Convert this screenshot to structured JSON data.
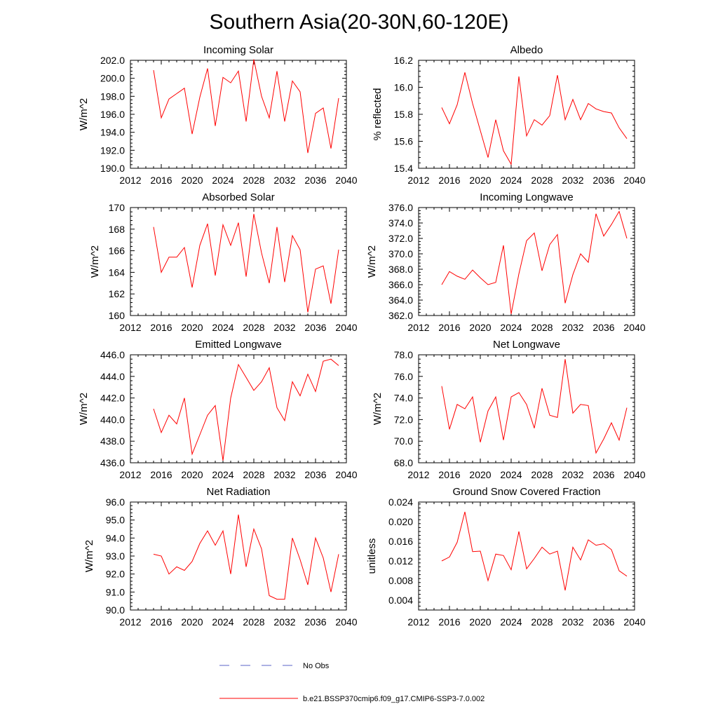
{
  "figure": {
    "title": "Southern Asia(20-30N,60-120E)"
  },
  "legend": {
    "obs_label": "No Obs",
    "model_label": "b.e21.BSSP370cmip6.f09_g17.CMIP6-SSP3-7.0.002",
    "obs_color": "#5b63c9",
    "model_color": "#ff0000"
  },
  "chart_data": [
    {
      "type": "line",
      "title": "Incoming Solar",
      "xlabel": "",
      "ylabel": "W/m^2",
      "xlim": [
        2012,
        2040
      ],
      "ylim": [
        190,
        202
      ],
      "xticks": [
        "2012",
        "2016",
        "2020",
        "2024",
        "2028",
        "2032",
        "2036",
        "2040"
      ],
      "yticks": [
        "190.0",
        "192.0",
        "194.0",
        "196.0",
        "198.0",
        "200.0",
        "202.0"
      ],
      "x": [
        2015,
        2016,
        2017,
        2018,
        2019,
        2020,
        2021,
        2022,
        2023,
        2024,
        2025,
        2026,
        2027,
        2028,
        2029,
        2030,
        2031,
        2032,
        2033,
        2034,
        2035,
        2036,
        2037,
        2038,
        2039
      ],
      "values": [
        200.9,
        195.6,
        197.7,
        198.3,
        198.9,
        193.8,
        197.9,
        201.1,
        194.7,
        200.1,
        199.5,
        200.8,
        195.2,
        202.1,
        198.0,
        195.6,
        200.8,
        195.2,
        199.7,
        198.5,
        191.7,
        196.1,
        196.7,
        192.2,
        197.8
      ],
      "color": "#ff0000"
    },
    {
      "type": "line",
      "title": "Albedo",
      "xlabel": "",
      "ylabel": "% reflected",
      "xlim": [
        2012,
        2040
      ],
      "ylim": [
        15.4,
        16.2
      ],
      "xticks": [
        "2012",
        "2016",
        "2020",
        "2024",
        "2028",
        "2032",
        "2036",
        "2040"
      ],
      "yticks": [
        "15.4",
        "15.6",
        "15.8",
        "16.0",
        "16.2"
      ],
      "x": [
        2015,
        2016,
        2017,
        2018,
        2019,
        2020,
        2021,
        2022,
        2023,
        2024,
        2025,
        2026,
        2027,
        2028,
        2029,
        2030,
        2031,
        2032,
        2033,
        2034,
        2035,
        2036,
        2037,
        2038,
        2039
      ],
      "values": [
        15.85,
        15.73,
        15.87,
        16.11,
        15.88,
        15.68,
        15.48,
        15.76,
        15.53,
        15.43,
        16.08,
        15.64,
        15.76,
        15.72,
        15.79,
        16.09,
        15.76,
        15.91,
        15.76,
        15.88,
        15.84,
        15.82,
        15.81,
        15.7,
        15.62
      ],
      "color": "#ff0000"
    },
    {
      "type": "line",
      "title": "Absorbed Solar",
      "xlabel": "",
      "ylabel": "W/m^2",
      "xlim": [
        2012,
        2040
      ],
      "ylim": [
        160,
        170
      ],
      "xticks": [
        "2012",
        "2016",
        "2020",
        "2024",
        "2028",
        "2032",
        "2036",
        "2040"
      ],
      "yticks": [
        "160",
        "162",
        "164",
        "166",
        "168",
        "170"
      ],
      "x": [
        2015,
        2016,
        2017,
        2018,
        2019,
        2020,
        2021,
        2022,
        2023,
        2024,
        2025,
        2026,
        2027,
        2028,
        2029,
        2030,
        2031,
        2032,
        2033,
        2034,
        2035,
        2036,
        2037,
        2038,
        2039
      ],
      "values": [
        168.2,
        164.0,
        165.4,
        165.4,
        166.3,
        162.6,
        166.5,
        168.5,
        163.7,
        168.4,
        166.5,
        168.6,
        163.6,
        169.4,
        165.8,
        163.0,
        168.2,
        163.1,
        167.4,
        166.1,
        160.3,
        164.3,
        164.6,
        161.1,
        166.1
      ],
      "color": "#ff0000"
    },
    {
      "type": "line",
      "title": "Incoming Longwave",
      "xlabel": "",
      "ylabel": "W/m^2",
      "xlim": [
        2012,
        2040
      ],
      "ylim": [
        362,
        376
      ],
      "xticks": [
        "2012",
        "2016",
        "2020",
        "2024",
        "2028",
        "2032",
        "2036",
        "2040"
      ],
      "yticks": [
        "362.0",
        "364.0",
        "366.0",
        "368.0",
        "370.0",
        "372.0",
        "374.0",
        "376.0"
      ],
      "x": [
        2015,
        2016,
        2017,
        2018,
        2019,
        2020,
        2021,
        2022,
        2023,
        2024,
        2025,
        2026,
        2027,
        2028,
        2029,
        2030,
        2031,
        2032,
        2033,
        2034,
        2035,
        2036,
        2037,
        2038,
        2039
      ],
      "values": [
        366.0,
        367.7,
        367.1,
        366.7,
        367.9,
        366.9,
        366.0,
        366.3,
        371.1,
        362.2,
        367.4,
        371.7,
        372.7,
        367.8,
        371.2,
        372.5,
        363.6,
        367.3,
        370.0,
        368.9,
        375.2,
        372.3,
        373.8,
        375.5,
        372.0
      ],
      "color": "#ff0000"
    },
    {
      "type": "line",
      "title": "Emitted Longwave",
      "xlabel": "",
      "ylabel": "W/m^2",
      "xlim": [
        2012,
        2040
      ],
      "ylim": [
        436,
        446
      ],
      "xticks": [
        "2012",
        "2016",
        "2020",
        "2024",
        "2028",
        "2032",
        "2036",
        "2040"
      ],
      "yticks": [
        "436.0",
        "438.0",
        "440.0",
        "442.0",
        "444.0",
        "446.0"
      ],
      "x": [
        2015,
        2016,
        2017,
        2018,
        2019,
        2020,
        2021,
        2022,
        2023,
        2024,
        2025,
        2026,
        2027,
        2028,
        2029,
        2030,
        2031,
        2032,
        2033,
        2034,
        2035,
        2036,
        2037,
        2038,
        2039
      ],
      "values": [
        441.0,
        438.8,
        440.4,
        439.6,
        442.0,
        436.8,
        438.6,
        440.4,
        441.3,
        436.2,
        442.0,
        445.1,
        443.9,
        442.7,
        443.5,
        444.8,
        441.1,
        439.9,
        443.5,
        442.2,
        444.2,
        442.6,
        445.4,
        445.6,
        445.0
      ],
      "color": "#ff0000"
    },
    {
      "type": "line",
      "title": "Net Longwave",
      "xlabel": "",
      "ylabel": "W/m^2",
      "xlim": [
        2012,
        2040
      ],
      "ylim": [
        68,
        78
      ],
      "xticks": [
        "2012",
        "2016",
        "2020",
        "2024",
        "2028",
        "2032",
        "2036",
        "2040"
      ],
      "yticks": [
        "68.0",
        "70.0",
        "72.0",
        "74.0",
        "76.0",
        "78.0"
      ],
      "x": [
        2015,
        2016,
        2017,
        2018,
        2019,
        2020,
        2021,
        2022,
        2023,
        2024,
        2025,
        2026,
        2027,
        2028,
        2029,
        2030,
        2031,
        2032,
        2033,
        2034,
        2035,
        2036,
        2037,
        2038,
        2039
      ],
      "values": [
        75.1,
        71.1,
        73.4,
        73.0,
        74.1,
        69.9,
        72.8,
        74.1,
        70.1,
        74.1,
        74.5,
        73.4,
        71.2,
        74.9,
        72.4,
        72.2,
        77.6,
        72.6,
        73.4,
        73.3,
        68.9,
        70.2,
        71.7,
        70.1,
        73.1
      ],
      "color": "#ff0000"
    },
    {
      "type": "line",
      "title": "Net Radiation",
      "xlabel": "",
      "ylabel": "W/m^2",
      "xlim": [
        2012,
        2040
      ],
      "ylim": [
        90,
        96
      ],
      "xticks": [
        "2012",
        "2016",
        "2020",
        "2024",
        "2028",
        "2032",
        "2036",
        "2040"
      ],
      "yticks": [
        "90.0",
        "91.0",
        "92.0",
        "93.0",
        "94.0",
        "95.0",
        "96.0"
      ],
      "x": [
        2015,
        2016,
        2017,
        2018,
        2019,
        2020,
        2021,
        2022,
        2023,
        2024,
        2025,
        2026,
        2027,
        2028,
        2029,
        2030,
        2031,
        2032,
        2033,
        2034,
        2035,
        2036,
        2037,
        2038,
        2039
      ],
      "values": [
        93.1,
        93.0,
        92.0,
        92.4,
        92.2,
        92.7,
        93.7,
        94.4,
        93.6,
        94.4,
        92.0,
        95.3,
        92.4,
        94.5,
        93.4,
        90.8,
        90.6,
        90.6,
        94.0,
        92.8,
        91.4,
        94.0,
        92.9,
        91.0,
        93.1
      ],
      "color": "#ff0000"
    },
    {
      "type": "line",
      "title": "Ground Snow Covered Fraction",
      "xlabel": "",
      "ylabel": "unitless",
      "xlim": [
        2012,
        2040
      ],
      "ylim": [
        0.002,
        0.024
      ],
      "xticks": [
        "2012",
        "2016",
        "2020",
        "2024",
        "2028",
        "2032",
        "2036",
        "2040"
      ],
      "yticks": [
        "0.004",
        "0.008",
        "0.012",
        "0.016",
        "0.020",
        "0.024"
      ],
      "x": [
        2015,
        2016,
        2017,
        2018,
        2019,
        2020,
        2021,
        2022,
        2023,
        2024,
        2025,
        2026,
        2027,
        2028,
        2029,
        2030,
        2031,
        2032,
        2033,
        2034,
        2035,
        2036,
        2037,
        2038,
        2039
      ],
      "values": [
        0.012,
        0.0128,
        0.0158,
        0.022,
        0.0139,
        0.014,
        0.008,
        0.0134,
        0.0131,
        0.0102,
        0.018,
        0.0104,
        0.0125,
        0.0148,
        0.0134,
        0.014,
        0.006,
        0.0148,
        0.0122,
        0.0163,
        0.0152,
        0.0155,
        0.0143,
        0.01,
        0.0089
      ],
      "color": "#ff0000"
    }
  ]
}
